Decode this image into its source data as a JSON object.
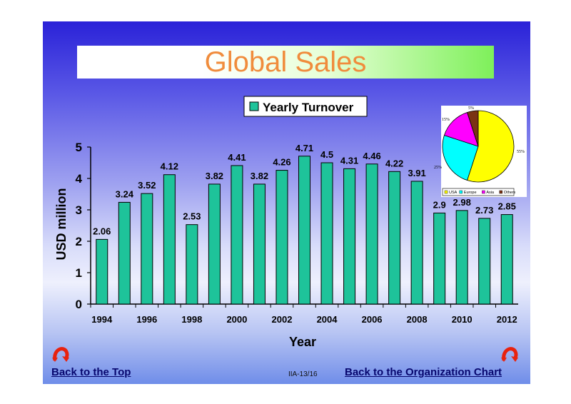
{
  "page": {
    "title": "Global Sales",
    "slide_number": "IIA-13/16",
    "nav": {
      "back_top_label": "Back to the Top",
      "back_org_label": "Back to the Organization Chart"
    }
  },
  "colors": {
    "bar": "#1ec39a",
    "title_text": "#f08c3c",
    "usa": "#ffff00",
    "europe": "#00ffff",
    "asia": "#ff00ff",
    "others": "#7a3314",
    "arrow": "#e8220e"
  },
  "icons": {
    "back_top": "curved-arrow-icon",
    "back_org": "curved-arrow-icon"
  },
  "chart_data": [
    {
      "type": "bar",
      "title": "",
      "xlabel": "Year",
      "ylabel": "USD million",
      "ylim": [
        0,
        5
      ],
      "yticks": [
        "0",
        "1",
        "2",
        "3",
        "4",
        "5"
      ],
      "xtick_labels": [
        "1994",
        "1996",
        "1998",
        "2000",
        "2002",
        "2004",
        "2006",
        "2008",
        "2010",
        "2012"
      ],
      "legend_position": "top-center",
      "grid": false,
      "categories": [
        "1994",
        "1995",
        "1996",
        "1997",
        "1998",
        "1999",
        "2000",
        "2001",
        "2002",
        "2003",
        "2004",
        "2005",
        "2006",
        "2007",
        "2008",
        "2009",
        "2010",
        "2011",
        "2012"
      ],
      "series": [
        {
          "name": "Yearly Turnover",
          "values": [
            2.06,
            3.24,
            3.52,
            4.12,
            2.53,
            3.82,
            4.41,
            3.82,
            4.26,
            4.71,
            4.5,
            4.31,
            4.46,
            4.22,
            3.91,
            2.9,
            2.98,
            2.73,
            2.85
          ],
          "labels": [
            "2.06",
            "3.24",
            "3.52",
            "4.12",
            "2.53",
            "3.82",
            "4.41",
            "3.82",
            "4.26",
            "4.71",
            "4.5",
            "4.31",
            "4.46",
            "4.22",
            "3.91",
            "2.9",
            "2.98",
            "2.73",
            "2.85"
          ]
        }
      ]
    },
    {
      "type": "pie",
      "legend_position": "bottom",
      "slices": [
        {
          "name": "USA",
          "value": 55,
          "label": "55%",
          "color": "#ffff00"
        },
        {
          "name": "Europe",
          "value": 25,
          "label": "25%",
          "color": "#00ffff"
        },
        {
          "name": "Asia",
          "value": 15,
          "label": "15%",
          "color": "#ff00ff"
        },
        {
          "name": "Others",
          "value": 5,
          "label": "5%",
          "color": "#7a3314"
        }
      ]
    }
  ]
}
